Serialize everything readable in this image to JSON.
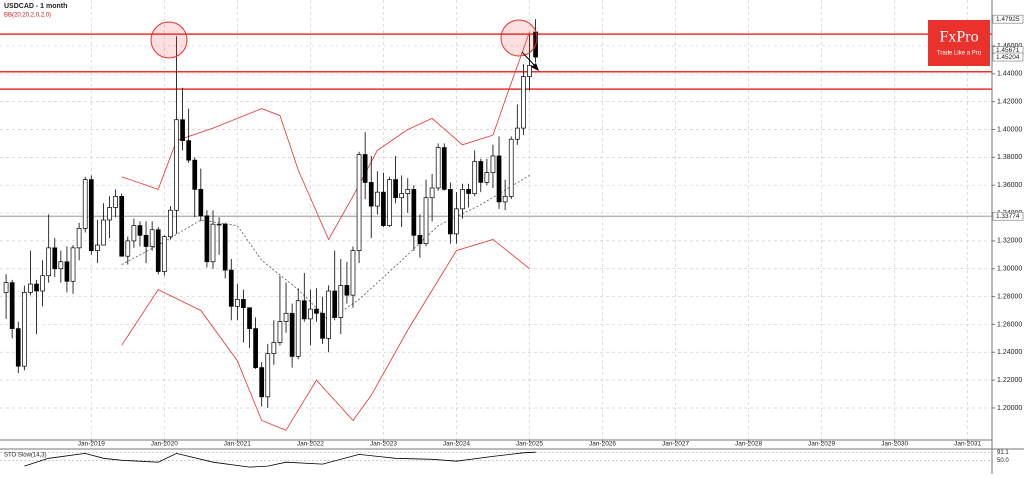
{
  "chart_data": {
    "type": "candlestick",
    "title": "USDCAD - 1 month",
    "indicator_label": "BB(20,20,2,0,2,0)",
    "logo": {
      "brand": "FxPro",
      "tagline": "Trade Like a Pro"
    },
    "xlim": [
      "2017-10",
      "2031-05"
    ],
    "xticks": [
      {
        "value": "2019-01",
        "label": "Jan-2019"
      },
      {
        "value": "2020-01",
        "label": "Jan-2020"
      },
      {
        "value": "2021-01",
        "label": "Jan-2021"
      },
      {
        "value": "2022-01",
        "label": "Jan-2022"
      },
      {
        "value": "2023-01",
        "label": "Jan-2023"
      },
      {
        "value": "2024-01",
        "label": "Jan-2024"
      },
      {
        "value": "2025-01",
        "label": "Jan-2025"
      },
      {
        "value": "2026-01",
        "label": "Jan-2026"
      },
      {
        "value": "2027-01",
        "label": "Jan-2027"
      },
      {
        "value": "2028-01",
        "label": "Jan-2028"
      },
      {
        "value": "2029-01",
        "label": "Jan-2029"
      },
      {
        "value": "2030-01",
        "label": "Jan-2030"
      },
      {
        "value": "2031-01",
        "label": "Jan-2031"
      }
    ],
    "ylim": [
      1.177,
      1.493
    ],
    "yticks": [
      {
        "value": 1.2,
        "label": "1.20000"
      },
      {
        "value": 1.22,
        "label": "1.22000"
      },
      {
        "value": 1.24,
        "label": "1.24000"
      },
      {
        "value": 1.26,
        "label": "1.26000"
      },
      {
        "value": 1.28,
        "label": "1.28000"
      },
      {
        "value": 1.3,
        "label": "1.30000"
      },
      {
        "value": 1.32,
        "label": "1.32000"
      },
      {
        "value": 1.34,
        "label": "1.34000"
      },
      {
        "value": 1.36,
        "label": "1.36000"
      },
      {
        "value": 1.38,
        "label": "1.38000"
      },
      {
        "value": 1.4,
        "label": "1.40000"
      },
      {
        "value": 1.42,
        "label": "1.42000"
      },
      {
        "value": 1.44,
        "label": "1.44000"
      },
      {
        "value": 1.46,
        "label": "1.46000"
      }
    ],
    "grid": true,
    "up_color": "#ffffff",
    "down_color": "#000000",
    "candles": {
      "x": [
        "2017-11",
        "2017-12",
        "2018-01",
        "2018-02",
        "2018-03",
        "2018-04",
        "2018-05",
        "2018-06",
        "2018-07",
        "2018-08",
        "2018-09",
        "2018-10",
        "2018-11",
        "2018-12",
        "2019-01",
        "2019-02",
        "2019-03",
        "2019-04",
        "2019-05",
        "2019-06",
        "2019-07",
        "2019-08",
        "2019-09",
        "2019-10",
        "2019-11",
        "2019-12",
        "2020-01",
        "2020-02",
        "2020-03",
        "2020-04",
        "2020-05",
        "2020-06",
        "2020-07",
        "2020-08",
        "2020-09",
        "2020-10",
        "2020-11",
        "2020-12",
        "2021-01",
        "2021-02",
        "2021-03",
        "2021-04",
        "2021-05",
        "2021-06",
        "2021-07",
        "2021-08",
        "2021-09",
        "2021-10",
        "2021-11",
        "2021-12",
        "2022-01",
        "2022-02",
        "2022-03",
        "2022-04",
        "2022-05",
        "2022-06",
        "2022-07",
        "2022-08",
        "2022-09",
        "2022-10",
        "2022-11",
        "2022-12",
        "2023-01",
        "2023-02",
        "2023-03",
        "2023-04",
        "2023-05",
        "2023-06",
        "2023-07",
        "2023-08",
        "2023-09",
        "2023-10",
        "2023-11",
        "2023-12",
        "2024-01",
        "2024-02",
        "2024-03",
        "2024-04",
        "2024-05",
        "2024-06",
        "2024-07",
        "2024-08",
        "2024-09",
        "2024-10",
        "2024-11",
        "2024-12",
        "2025-01",
        "2025-02"
      ],
      "open": [
        1.283,
        1.29,
        1.257,
        1.23,
        1.283,
        1.289,
        1.284,
        1.295,
        1.315,
        1.3,
        1.305,
        1.291,
        1.315,
        1.329,
        1.364,
        1.313,
        1.317,
        1.335,
        1.344,
        1.352,
        1.309,
        1.32,
        1.331,
        1.324,
        1.316,
        1.328,
        1.298,
        1.323,
        1.342,
        1.407,
        1.392,
        1.378,
        1.357,
        1.338,
        1.305,
        1.332,
        1.332,
        1.299,
        1.273,
        1.278,
        1.272,
        1.257,
        1.229,
        1.208,
        1.239,
        1.247,
        1.262,
        1.268,
        1.237,
        1.277,
        1.264,
        1.271,
        1.268,
        1.25,
        1.284,
        1.265,
        1.288,
        1.281,
        1.313,
        1.382,
        1.362,
        1.345,
        1.355,
        1.331,
        1.364,
        1.351,
        1.354,
        1.357,
        1.324,
        1.318,
        1.351,
        1.358,
        1.387,
        1.357,
        1.325,
        1.343,
        1.357,
        1.354,
        1.377,
        1.362,
        1.369,
        1.381,
        1.348,
        1.352,
        1.393,
        1.401,
        1.438,
        1.47
      ],
      "high": [
        1.296,
        1.292,
        1.262,
        1.288,
        1.313,
        1.292,
        1.306,
        1.339,
        1.322,
        1.313,
        1.316,
        1.317,
        1.333,
        1.366,
        1.367,
        1.335,
        1.347,
        1.352,
        1.357,
        1.354,
        1.323,
        1.336,
        1.334,
        1.334,
        1.334,
        1.33,
        1.324,
        1.345,
        1.467,
        1.43,
        1.415,
        1.38,
        1.372,
        1.342,
        1.342,
        1.337,
        1.333,
        1.307,
        1.289,
        1.285,
        1.272,
        1.265,
        1.233,
        1.246,
        1.263,
        1.295,
        1.29,
        1.275,
        1.286,
        1.297,
        1.285,
        1.286,
        1.28,
        1.288,
        1.313,
        1.307,
        1.305,
        1.316,
        1.384,
        1.398,
        1.381,
        1.37,
        1.369,
        1.366,
        1.381,
        1.367,
        1.365,
        1.36,
        1.339,
        1.364,
        1.368,
        1.39,
        1.39,
        1.362,
        1.355,
        1.361,
        1.361,
        1.385,
        1.379,
        1.379,
        1.389,
        1.395,
        1.364,
        1.395,
        1.418,
        1.447,
        1.468,
        1.4792
      ],
      "low": [
        1.264,
        1.25,
        1.225,
        1.227,
        1.281,
        1.253,
        1.273,
        1.29,
        1.294,
        1.29,
        1.283,
        1.282,
        1.306,
        1.326,
        1.31,
        1.304,
        1.317,
        1.322,
        1.337,
        1.309,
        1.303,
        1.315,
        1.316,
        1.304,
        1.313,
        1.296,
        1.295,
        1.321,
        1.325,
        1.385,
        1.376,
        1.337,
        1.334,
        1.301,
        1.3,
        1.31,
        1.293,
        1.263,
        1.263,
        1.247,
        1.243,
        1.228,
        1.201,
        1.2,
        1.231,
        1.245,
        1.254,
        1.229,
        1.235,
        1.262,
        1.245,
        1.262,
        1.246,
        1.24,
        1.263,
        1.253,
        1.275,
        1.272,
        1.304,
        1.35,
        1.322,
        1.339,
        1.33,
        1.33,
        1.347,
        1.33,
        1.34,
        1.313,
        1.308,
        1.316,
        1.334,
        1.356,
        1.356,
        1.318,
        1.318,
        1.336,
        1.344,
        1.352,
        1.355,
        1.36,
        1.358,
        1.343,
        1.342,
        1.35,
        1.389,
        1.396,
        1.428,
        1.448
      ],
      "close": [
        1.29,
        1.257,
        1.23,
        1.283,
        1.289,
        1.284,
        1.295,
        1.315,
        1.3,
        1.305,
        1.291,
        1.315,
        1.329,
        1.364,
        1.313,
        1.317,
        1.335,
        1.344,
        1.352,
        1.309,
        1.32,
        1.331,
        1.324,
        1.316,
        1.328,
        1.298,
        1.323,
        1.342,
        1.407,
        1.392,
        1.378,
        1.357,
        1.338,
        1.305,
        1.332,
        1.332,
        1.299,
        1.273,
        1.278,
        1.272,
        1.257,
        1.229,
        1.208,
        1.239,
        1.247,
        1.262,
        1.268,
        1.237,
        1.277,
        1.264,
        1.271,
        1.268,
        1.25,
        1.284,
        1.265,
        1.288,
        1.281,
        1.313,
        1.382,
        1.362,
        1.345,
        1.355,
        1.331,
        1.364,
        1.351,
        1.354,
        1.357,
        1.324,
        1.318,
        1.351,
        1.358,
        1.387,
        1.357,
        1.325,
        1.343,
        1.357,
        1.354,
        1.377,
        1.362,
        1.369,
        1.381,
        1.348,
        1.352,
        1.393,
        1.401,
        1.438,
        1.446,
        1.452
      ]
    },
    "series": [
      {
        "name": "BB upper",
        "color": "#e8322b",
        "dash": false,
        "x": [
          "2019-06",
          "2019-12",
          "2020-03",
          "2020-09",
          "2021-05",
          "2021-08",
          "2021-11",
          "2022-04",
          "2022-08",
          "2022-12",
          "2023-05",
          "2023-09",
          "2024-02",
          "2024-07",
          "2024-09",
          "2025-01"
        ],
        "values": [
          1.366,
          1.357,
          1.392,
          1.401,
          1.415,
          1.41,
          1.371,
          1.321,
          1.352,
          1.385,
          1.4,
          1.408,
          1.389,
          1.396,
          1.421,
          1.47
        ]
      },
      {
        "name": "BB middle",
        "color": "#555555",
        "dash": true,
        "x": [
          "2019-06",
          "2019-12",
          "2020-07",
          "2021-01",
          "2021-05",
          "2021-11",
          "2022-04",
          "2022-09",
          "2023-04",
          "2023-10",
          "2024-05",
          "2025-01"
        ],
        "values": [
          1.303,
          1.317,
          1.335,
          1.331,
          1.306,
          1.285,
          1.263,
          1.278,
          1.306,
          1.331,
          1.346,
          1.367
        ]
      },
      {
        "name": "BB lower",
        "color": "#e8322b",
        "dash": false,
        "x": [
          "2019-06",
          "2019-12",
          "2020-07",
          "2021-01",
          "2021-05",
          "2021-09",
          "2022-02",
          "2022-08",
          "2022-11",
          "2023-05",
          "2024-01",
          "2024-07",
          "2025-01"
        ],
        "values": [
          1.245,
          1.285,
          1.27,
          1.234,
          1.191,
          1.184,
          1.22,
          1.191,
          1.209,
          1.256,
          1.313,
          1.321,
          1.3
        ]
      }
    ],
    "levels": [
      {
        "value": 1.4685,
        "color": "#e8322b"
      },
      {
        "value": 1.4415,
        "color": "#e8322b"
      },
      {
        "value": 1.429,
        "color": "#e8322b"
      },
      {
        "value": 1.33774,
        "color": "#888888"
      }
    ],
    "price_labels": [
      1.47925,
      1.45671,
      1.45204,
      1.33774
    ],
    "oscillator": {
      "title": "STO Slow(14,3)",
      "ylim": [
        0,
        100
      ],
      "labels": [
        91.1,
        {
          "value": 50,
          "label": "50.0"
        }
      ],
      "x": [
        "2018-02",
        "2018-06",
        "2018-12",
        "2019-03",
        "2019-06",
        "2019-12",
        "2020-03",
        "2020-09",
        "2021-03",
        "2021-06",
        "2021-09",
        "2022-03",
        "2022-09",
        "2023-03",
        "2023-09",
        "2024-01",
        "2024-07",
        "2024-12",
        "2025-02"
      ],
      "values": [
        20,
        60,
        85,
        60,
        50,
        40,
        85,
        40,
        15,
        20,
        40,
        30,
        80,
        60,
        55,
        45,
        70,
        88,
        91.1
      ]
    }
  }
}
